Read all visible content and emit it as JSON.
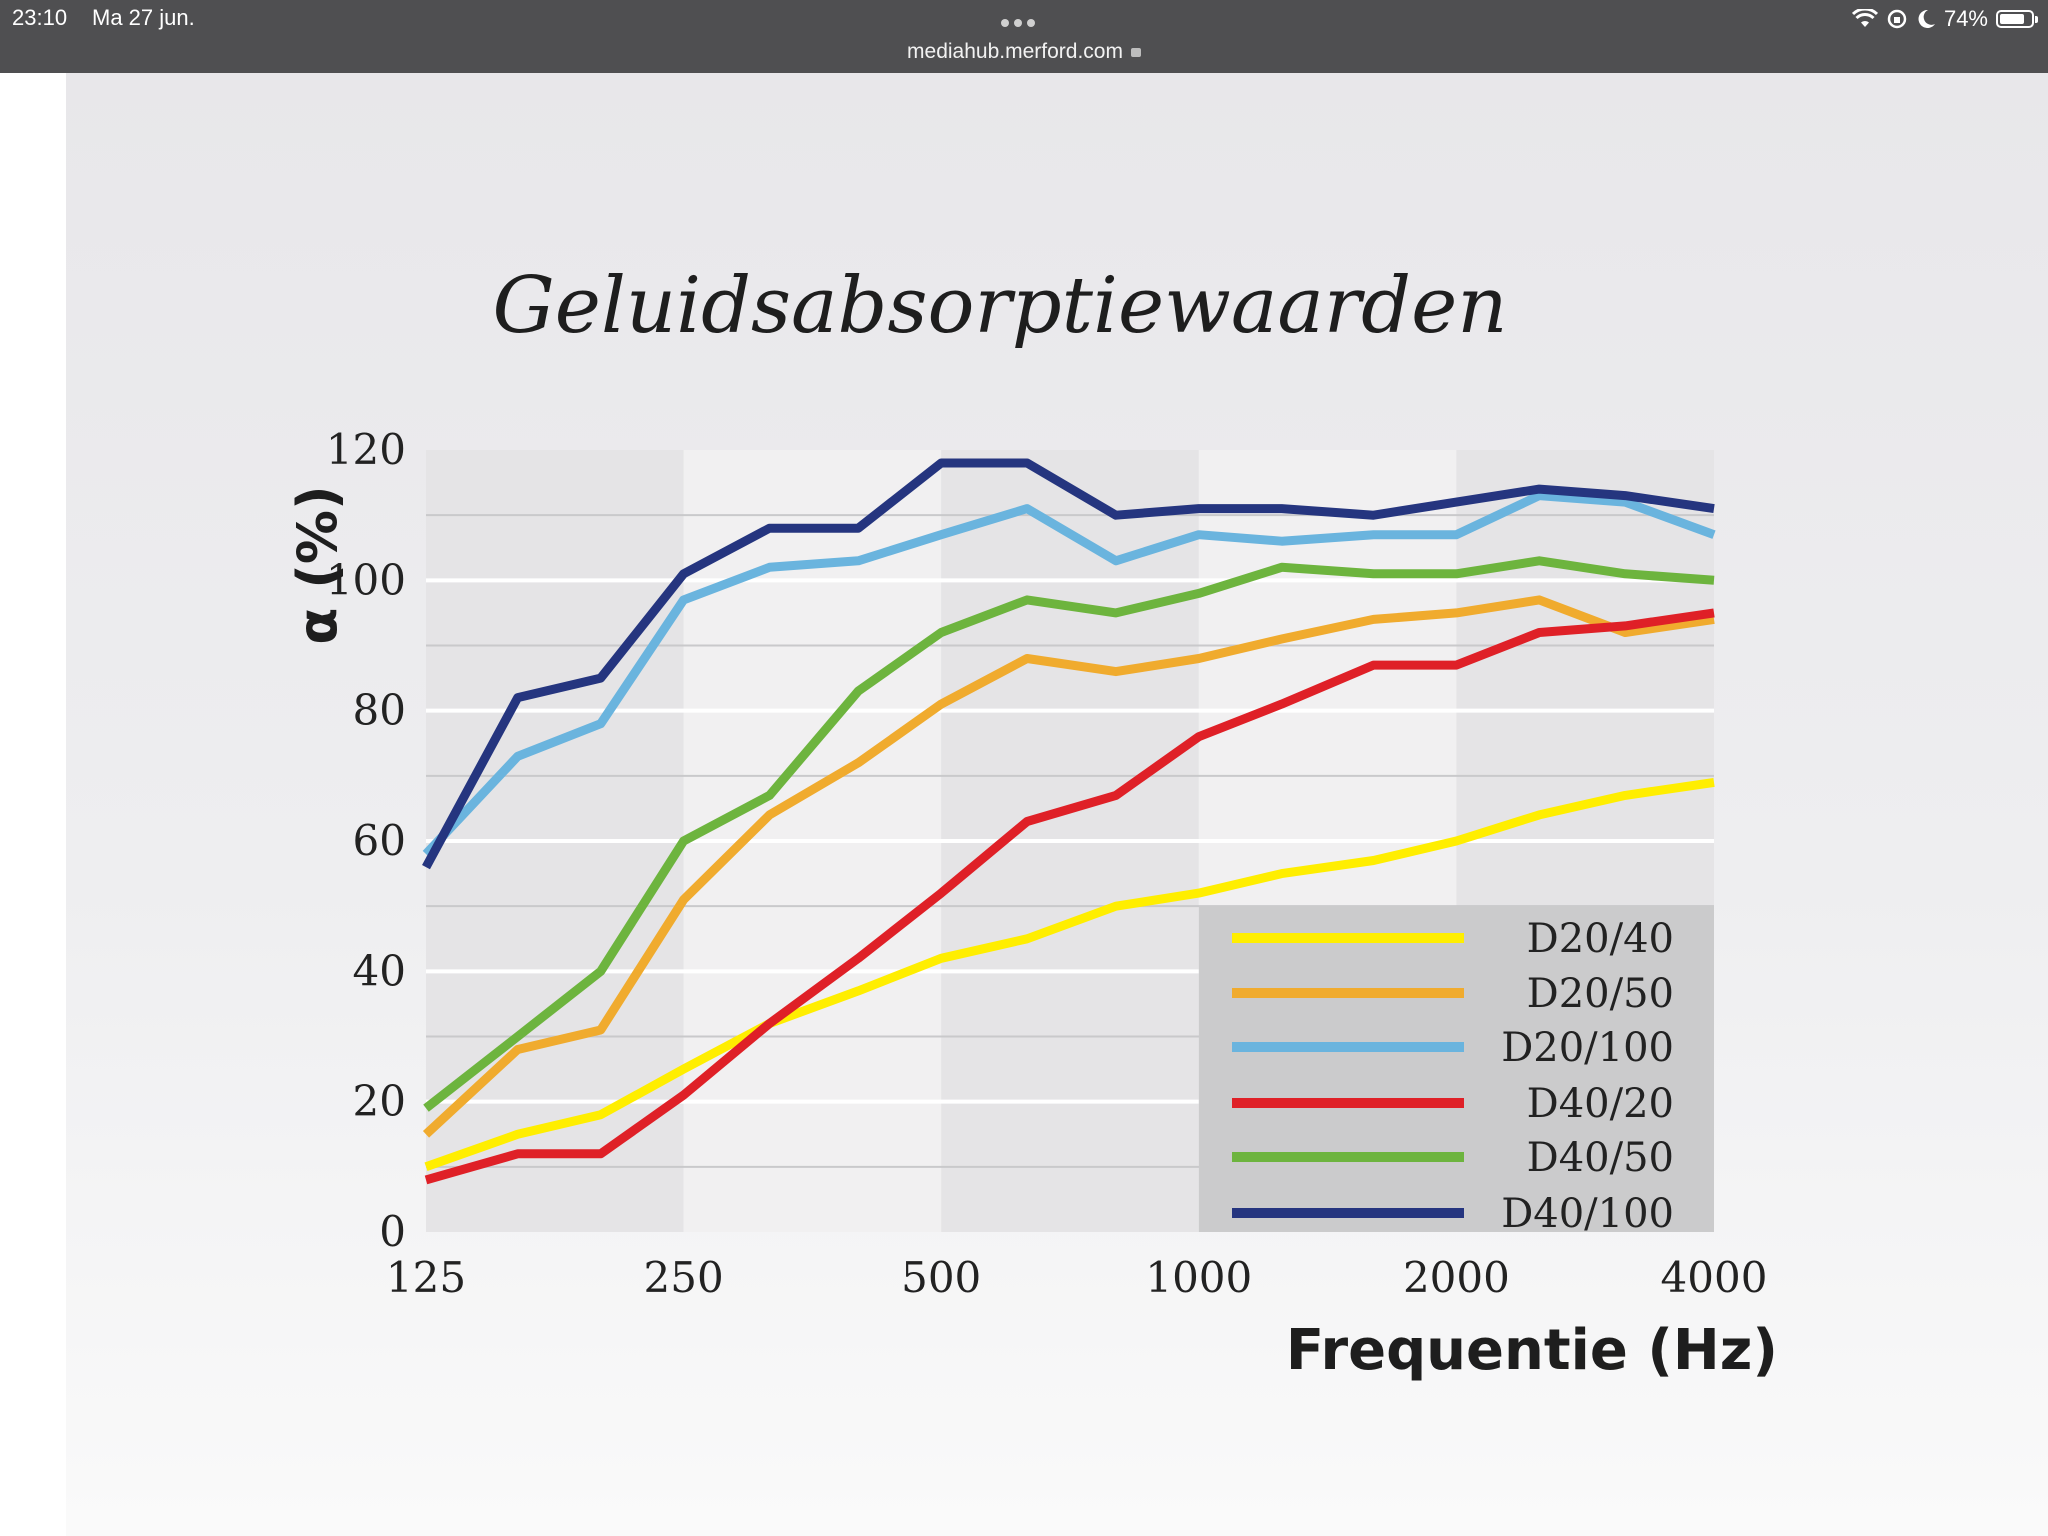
{
  "statusbar": {
    "time": "23:10",
    "date": "Ma 27 jun.",
    "url": "mediahub.merford.com",
    "battery": "74%",
    "icons": [
      "wifi-icon",
      "orientation-lock-icon",
      "moon-icon",
      "battery-icon"
    ]
  },
  "chart_data": {
    "type": "line",
    "title": "Geluidsabsorptiewaarden",
    "ylabel": "α (%)",
    "xlabel": "Frequentie (Hz)",
    "x_tick_labels": [
      "125",
      "250",
      "500",
      "1000",
      "2000",
      "4000"
    ],
    "y_tick_labels": [
      "0",
      "20",
      "40",
      "60",
      "80",
      "100",
      "120"
    ],
    "ylim": [
      0,
      120
    ],
    "x_scale": "log2 (third-octave bands)",
    "x": [
      125,
      160,
      200,
      250,
      315,
      400,
      500,
      630,
      800,
      1000,
      1250,
      1600,
      2000,
      2500,
      3150,
      4000
    ],
    "grid": true,
    "legend_position": "bottom-right",
    "series": [
      {
        "name": "D20/40",
        "color": "#ffee00",
        "values": [
          10,
          15,
          18,
          25,
          32,
          37,
          42,
          45,
          50,
          52,
          55,
          57,
          60,
          64,
          67,
          69
        ]
      },
      {
        "name": "D20/50",
        "color": "#f0ab2e",
        "values": [
          15,
          28,
          31,
          51,
          64,
          72,
          81,
          88,
          86,
          88,
          91,
          94,
          95,
          97,
          92,
          94
        ]
      },
      {
        "name": "D20/100",
        "color": "#6ab4de",
        "values": [
          58,
          73,
          78,
          97,
          102,
          103,
          107,
          111,
          103,
          107,
          106,
          107,
          107,
          113,
          112,
          107
        ]
      },
      {
        "name": "D40/20",
        "color": "#df2027",
        "values": [
          8,
          12,
          12,
          21,
          32,
          42,
          52,
          63,
          67,
          76,
          81,
          87,
          87,
          92,
          93,
          95
        ]
      },
      {
        "name": "D40/50",
        "color": "#6db43e",
        "values": [
          19,
          30,
          40,
          60,
          67,
          83,
          92,
          97,
          95,
          98,
          102,
          101,
          101,
          103,
          101,
          100
        ]
      },
      {
        "name": "D40/100",
        "color": "#25357f",
        "values": [
          56,
          82,
          85,
          101,
          108,
          108,
          118,
          118,
          110,
          111,
          111,
          110,
          112,
          114,
          113,
          111
        ]
      }
    ]
  }
}
